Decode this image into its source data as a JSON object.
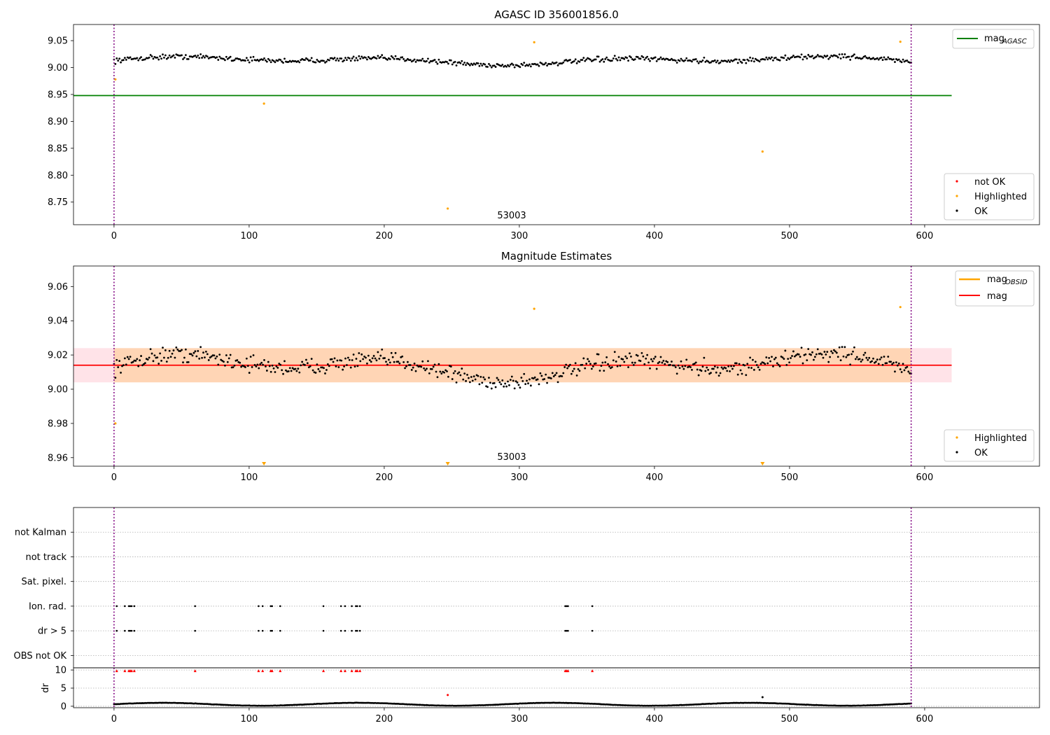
{
  "chart_data": [
    {
      "id": "top",
      "type": "scatter",
      "title": "AGASC ID 356001856.0",
      "xlim": [
        -30,
        685
      ],
      "ylim": [
        8.708,
        9.08
      ],
      "xticks": [
        0,
        100,
        200,
        300,
        400,
        500,
        600
      ],
      "yticks": [
        8.75,
        8.8,
        8.85,
        8.9,
        8.95,
        9.0,
        9.05
      ],
      "ytick_labels": [
        "8.75",
        "8.80",
        "8.85",
        "8.90",
        "8.95",
        "9.00",
        "9.05"
      ],
      "vlines": [
        0,
        590
      ],
      "annotation": {
        "text": "53003",
        "x": 295
      },
      "hline": {
        "name": "mag_AGASC",
        "y": 8.948,
        "x_range": [
          -30,
          620
        ],
        "color": "#008000"
      },
      "ok_series": {
        "name": "OK",
        "color": "#000000",
        "n": 590,
        "x_start": 0,
        "x_end": 590,
        "base": 9.013,
        "amp": 0.009,
        "noise": 0.007
      },
      "highlighted": {
        "name": "Highlighted",
        "color": "#FFA500",
        "points": [
          [
            1,
            8.978
          ],
          [
            111,
            8.933
          ],
          [
            247,
            8.738
          ],
          [
            311,
            9.047
          ],
          [
            480,
            8.844
          ],
          [
            582,
            9.048
          ]
        ]
      },
      "not_ok": {
        "name": "not OK",
        "color": "#FF0000",
        "points": []
      },
      "legend_lines": [
        {
          "label": "mag",
          "sub": "AGASC",
          "color": "#008000"
        }
      ],
      "legend_markers": [
        {
          "label": "not OK",
          "color": "#FF0000"
        },
        {
          "label": "Highlighted",
          "color": "#FFA500"
        },
        {
          "label": "OK",
          "color": "#000000"
        }
      ]
    },
    {
      "id": "mid",
      "type": "scatter",
      "title": "Magnitude Estimates",
      "xlim": [
        -30,
        685
      ],
      "ylim": [
        8.955,
        9.072
      ],
      "xticks": [
        0,
        100,
        200,
        300,
        400,
        500,
        600
      ],
      "yticks": [
        8.96,
        8.98,
        9.0,
        9.02,
        9.04,
        9.06
      ],
      "ytick_labels": [
        "8.96",
        "8.98",
        "9.00",
        "9.02",
        "9.04",
        "9.06"
      ],
      "vlines": [
        0,
        590
      ],
      "annotation": {
        "text": "53003",
        "x": 295
      },
      "mag_line": {
        "name": "mag",
        "y": 9.014,
        "x_range": [
          -30,
          620
        ],
        "color": "#FF0000"
      },
      "mag_band": {
        "y_low": 9.004,
        "y_high": 9.024,
        "x_range": [
          -30,
          620
        ],
        "color": "#FFC0CB"
      },
      "obsid_band": {
        "y_low": 9.004,
        "y_high": 9.024,
        "x_range": [
          0,
          590
        ],
        "color": "#FFA500"
      },
      "ok_series": {
        "name": "OK",
        "color": "#000000",
        "n": 590,
        "x_start": 0,
        "x_end": 590,
        "base": 9.013,
        "amp": 0.009,
        "noise": 0.007
      },
      "highlighted": {
        "name": "Highlighted",
        "color": "#FFA500",
        "points": [
          [
            1,
            8.98
          ],
          [
            311,
            9.047
          ],
          [
            582,
            9.048
          ]
        ]
      },
      "offscale_markers": [
        111,
        247,
        480
      ],
      "legend_lines": [
        {
          "label": "mag",
          "sub": "OBSID",
          "color": "#FFA500"
        },
        {
          "label": "mag",
          "sub": "",
          "color": "#FF0000"
        }
      ],
      "legend_markers": [
        {
          "label": "Highlighted",
          "color": "#FFA500"
        },
        {
          "label": "OK",
          "color": "#000000"
        }
      ]
    },
    {
      "id": "flags",
      "type": "scatter",
      "xlim": [
        -30,
        685
      ],
      "ylim": [
        -0.5,
        6
      ],
      "xticks": [
        0,
        100,
        200,
        300,
        400,
        500,
        600
      ],
      "vlines": [
        0,
        590
      ],
      "categories": [
        "OBS not OK",
        "dr > 5",
        "Ion. rad.",
        "Sat. pixel.",
        "not track",
        "not Kalman"
      ],
      "flagged_x": {
        "dr > 5": [
          2,
          8,
          11,
          12,
          13,
          15,
          60,
          107,
          110,
          116,
          117,
          123,
          155,
          168,
          171,
          176,
          179,
          180,
          182,
          334,
          335,
          336,
          354
        ],
        "Ion. rad.": [
          2,
          8,
          11,
          12,
          13,
          15,
          60,
          107,
          110,
          116,
          117,
          123,
          155,
          168,
          171,
          176,
          179,
          180,
          182,
          334,
          335,
          336,
          354
        ]
      }
    },
    {
      "id": "dr",
      "type": "scatter",
      "ylabel": "dr",
      "xlim": [
        -30,
        685
      ],
      "ylim": [
        -0.4,
        10.6
      ],
      "xticks": [
        0,
        100,
        200,
        300,
        400,
        500,
        600
      ],
      "xtick_labels": [
        "0",
        "100",
        "200",
        "300",
        "400",
        "500",
        "600"
      ],
      "yticks": [
        0,
        5,
        10
      ],
      "ytick_labels": [
        "0",
        "5",
        "10"
      ],
      "vlines": [
        0,
        590
      ],
      "ok_series": {
        "name": "OK",
        "color": "#000000",
        "n": 590,
        "x_start": 0,
        "x_end": 590,
        "base": 0.55,
        "amp": 0.4
      },
      "capped_points": {
        "color": "#FF0000",
        "y": 9.8,
        "x": [
          2,
          8,
          11,
          12,
          13,
          15,
          60,
          107,
          110,
          116,
          117,
          123,
          155,
          168,
          171,
          176,
          179,
          180,
          182,
          334,
          335,
          336,
          354
        ]
      },
      "extra_points": [
        {
          "x": 247,
          "y": 3.1,
          "color": "#FF0000"
        },
        {
          "x": 480,
          "y": 2.5,
          "color": "#000000"
        }
      ]
    }
  ]
}
